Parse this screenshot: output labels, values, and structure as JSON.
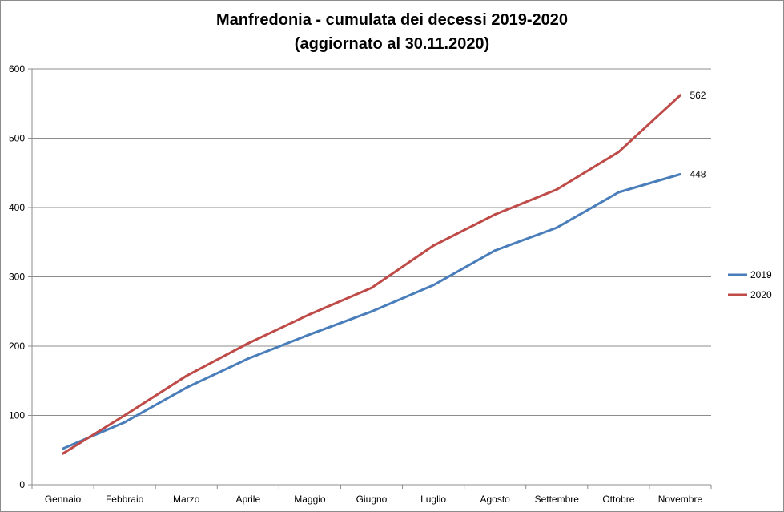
{
  "chart_data": {
    "type": "line",
    "title": "Manfredonia - cumulata dei decessi  2019-2020",
    "subtitle": "(aggiornato al 30.11.2020)",
    "categories": [
      "Gennaio",
      "Febbraio",
      "Marzo",
      "Aprile",
      "Maggio",
      "Giugno",
      "Luglio",
      "Agosto",
      "Settembre",
      "Ottobre",
      "Novembre"
    ],
    "series": [
      {
        "name": "2019",
        "color": "#4a7ebb",
        "values": [
          52,
          90,
          140,
          182,
          217,
          250,
          288,
          338,
          371,
          422,
          448
        ],
        "end_label": "448"
      },
      {
        "name": "2020",
        "color": "#be4b48",
        "values": [
          45,
          100,
          157,
          204,
          246,
          284,
          345,
          390,
          426,
          480,
          562
        ],
        "end_label": "562"
      }
    ],
    "ylim": [
      0,
      600
    ],
    "yticks": [
      0,
      100,
      200,
      300,
      400,
      500,
      600
    ],
    "grid": true,
    "legend": "right"
  }
}
